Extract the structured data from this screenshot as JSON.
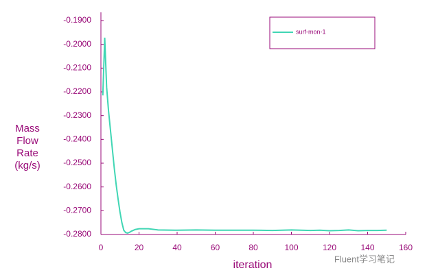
{
  "chart_data": {
    "type": "line",
    "xlabel": "iteration",
    "ylabel": [
      "Mass",
      "Flow",
      "Rate",
      "(kg/s)"
    ],
    "watermark": "Fluent学习笔记",
    "legend": "top-right",
    "x": [
      1,
      2,
      3,
      4,
      5,
      6,
      7,
      8,
      9,
      10,
      11,
      12,
      13,
      14,
      15,
      16,
      18,
      20,
      25,
      30,
      40,
      50,
      60,
      70,
      80,
      90,
      100,
      110,
      115,
      120,
      125,
      130,
      135,
      140,
      145,
      150
    ],
    "series": [
      {
        "name": "surf-mon-1",
        "color": "#40d6b4",
        "values": [
          -0.2215,
          -0.1972,
          -0.218,
          -0.228,
          -0.236,
          -0.244,
          -0.252,
          -0.259,
          -0.265,
          -0.2705,
          -0.275,
          -0.2782,
          -0.2792,
          -0.2794,
          -0.2791,
          -0.2786,
          -0.2779,
          -0.2776,
          -0.2776,
          -0.2781,
          -0.2782,
          -0.2781,
          -0.2782,
          -0.2782,
          -0.2782,
          -0.2783,
          -0.2781,
          -0.2783,
          -0.2782,
          -0.2784,
          -0.2783,
          -0.2781,
          -0.2784,
          -0.2783,
          -0.2783,
          -0.2782
        ]
      }
    ],
    "xlim": [
      0,
      160
    ],
    "xticks": [
      0,
      20,
      40,
      60,
      80,
      100,
      120,
      140,
      160
    ],
    "ylim": [
      -0.28,
      -0.19
    ],
    "yticks": [
      {
        "value": -0.28,
        "label": "-0.2800"
      },
      {
        "value": -0.27,
        "label": "-0.2700"
      },
      {
        "value": -0.26,
        "label": "-0.2600"
      },
      {
        "value": -0.25,
        "label": "-0.2500"
      },
      {
        "value": -0.24,
        "label": "-0.2400"
      },
      {
        "value": -0.23,
        "label": "-0.2300"
      },
      {
        "value": -0.22,
        "label": "-0.2200"
      },
      {
        "value": -0.21,
        "label": "-0.2100"
      },
      {
        "value": -0.2,
        "label": "-0.2000"
      },
      {
        "value": -0.19,
        "label": "-0.1900"
      }
    ]
  }
}
